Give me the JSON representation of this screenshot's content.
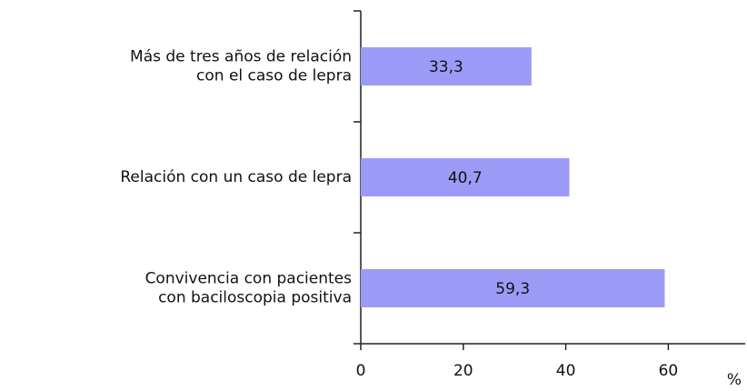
{
  "chart_data": {
    "type": "bar",
    "orientation": "horizontal",
    "categories": [
      [
        "Más de tres años de relación",
        "con el caso de lepra"
      ],
      [
        "Relación con un caso de lepra"
      ],
      [
        "Convivencia con pacientes",
        "con baciloscopia positiva"
      ]
    ],
    "values": [
      33.3,
      40.7,
      59.3
    ],
    "value_labels": [
      "33,3",
      "40,7",
      "59,3"
    ],
    "color": "#9b9bf7",
    "xlabel": "%",
    "xlim": [
      0,
      75
    ],
    "xticks": [
      0,
      20,
      40,
      60
    ]
  }
}
